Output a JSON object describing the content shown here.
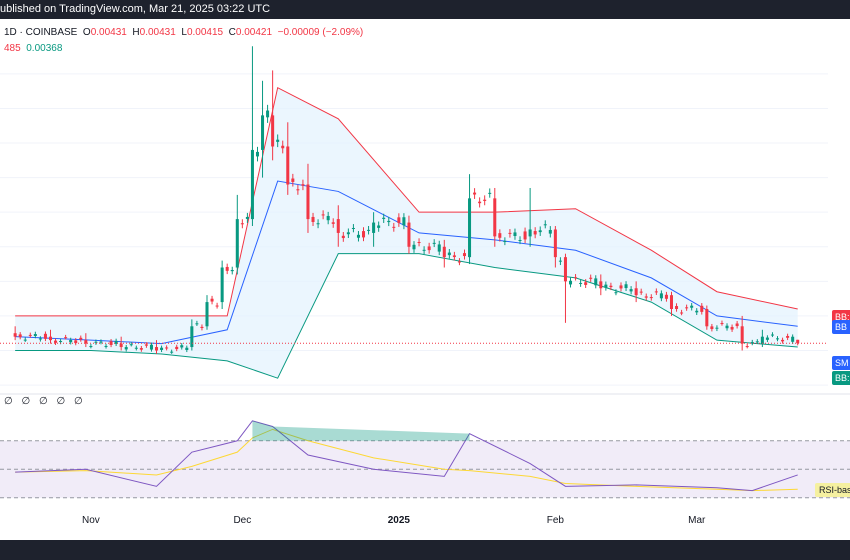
{
  "header": {
    "published": "ublished on TradingView.com, Mar 21, 2025 03:22 UTC"
  },
  "legend": {
    "symbol": "1D · COINBASE",
    "open_label": "O",
    "open": "0.00431",
    "high_label": "H",
    "high": "0.00431",
    "low_label": "L",
    "low": "0.00415",
    "close_label": "C",
    "close": "0.00421",
    "change": "−0.00009 (−2.09%)",
    "bb_values": [
      "485",
      "0.00368"
    ]
  },
  "rsi_legend": "∅ ∅ ∅ ∅ ∅",
  "price_tags": [
    {
      "text": "BB:",
      "color": "#f23645"
    },
    {
      "text": "BB",
      "color": "#2962ff"
    },
    {
      "text": "SM",
      "color": "#2962ff"
    },
    {
      "text": "BB:",
      "color": "#089981"
    }
  ],
  "rsi_tag": "RSI-base",
  "colors": {
    "up": "#089981",
    "down": "#f23645",
    "bb_upper": "#f23645",
    "bb_basis": "#2962ff",
    "bb_lower": "#089981",
    "bb_fill": "#e3f2fd",
    "rsi": "#7e57c2",
    "rsi_ma": "#fdd835",
    "rsi_band": "#ede7f6"
  },
  "chart_data": [
    {
      "type": "candlestick",
      "series_name": "Price (1D)",
      "x_labels": [
        "Nov",
        "Dec",
        "2025",
        "Feb",
        "Mar"
      ],
      "ylim": [
        0.0028,
        0.0135
      ],
      "last_close": 0.00421,
      "candles_sampled": [
        {
          "date": "Oct 17",
          "o": 0.0045,
          "h": 0.0047,
          "l": 0.0043,
          "c": 0.0044
        },
        {
          "date": "Oct 24",
          "o": 0.0044,
          "h": 0.0046,
          "l": 0.0042,
          "c": 0.0043
        },
        {
          "date": "Oct 31",
          "o": 0.0043,
          "h": 0.0045,
          "l": 0.0041,
          "c": 0.0042
        },
        {
          "date": "Nov 07",
          "o": 0.0042,
          "h": 0.0044,
          "l": 0.004,
          "c": 0.0041
        },
        {
          "date": "Nov 14",
          "o": 0.0041,
          "h": 0.0043,
          "l": 0.0039,
          "c": 0.004
        },
        {
          "date": "Nov 21",
          "o": 0.0041,
          "h": 0.0049,
          "l": 0.004,
          "c": 0.0047
        },
        {
          "date": "Nov 24",
          "o": 0.0047,
          "h": 0.0056,
          "l": 0.0046,
          "c": 0.0054
        },
        {
          "date": "Nov 27",
          "o": 0.0054,
          "h": 0.0066,
          "l": 0.0052,
          "c": 0.0064
        },
        {
          "date": "Nov 30",
          "o": 0.0064,
          "h": 0.0085,
          "l": 0.0062,
          "c": 0.0078
        },
        {
          "date": "Dec 03",
          "o": 0.0078,
          "h": 0.0128,
          "l": 0.0076,
          "c": 0.0098
        },
        {
          "date": "Dec 05",
          "o": 0.0098,
          "h": 0.0118,
          "l": 0.009,
          "c": 0.0108
        },
        {
          "date": "Dec 07",
          "o": 0.0108,
          "h": 0.0121,
          "l": 0.0095,
          "c": 0.0099
        },
        {
          "date": "Dec 10",
          "o": 0.0099,
          "h": 0.0106,
          "l": 0.0085,
          "c": 0.0088
        },
        {
          "date": "Dec 14",
          "o": 0.0088,
          "h": 0.0094,
          "l": 0.0074,
          "c": 0.0078
        },
        {
          "date": "Dec 20",
          "o": 0.0078,
          "h": 0.0082,
          "l": 0.007,
          "c": 0.0074
        },
        {
          "date": "Dec 27",
          "o": 0.0074,
          "h": 0.008,
          "l": 0.007,
          "c": 0.0077
        },
        {
          "date": "Jan 03",
          "o": 0.0077,
          "h": 0.0079,
          "l": 0.0068,
          "c": 0.007
        },
        {
          "date": "Jan 10",
          "o": 0.007,
          "h": 0.0072,
          "l": 0.0064,
          "c": 0.0067
        },
        {
          "date": "Jan 15",
          "o": 0.0067,
          "h": 0.0091,
          "l": 0.0065,
          "c": 0.0084
        },
        {
          "date": "Jan 20",
          "o": 0.0084,
          "h": 0.0087,
          "l": 0.007,
          "c": 0.0073
        },
        {
          "date": "Jan 27",
          "o": 0.0073,
          "h": 0.0087,
          "l": 0.007,
          "c": 0.0075
        },
        {
          "date": "Feb 01",
          "o": 0.0075,
          "h": 0.0076,
          "l": 0.0064,
          "c": 0.0067
        },
        {
          "date": "Feb 03",
          "o": 0.0067,
          "h": 0.0068,
          "l": 0.0048,
          "c": 0.006
        },
        {
          "date": "Feb 10",
          "o": 0.006,
          "h": 0.0062,
          "l": 0.0056,
          "c": 0.0058
        },
        {
          "date": "Feb 17",
          "o": 0.0058,
          "h": 0.006,
          "l": 0.0054,
          "c": 0.0056
        },
        {
          "date": "Feb 24",
          "o": 0.0056,
          "h": 0.0057,
          "l": 0.005,
          "c": 0.0052
        },
        {
          "date": "Mar 03",
          "o": 0.0052,
          "h": 0.0053,
          "l": 0.0046,
          "c": 0.0047
        },
        {
          "date": "Mar 10",
          "o": 0.0047,
          "h": 0.005,
          "l": 0.004,
          "c": 0.0042
        },
        {
          "date": "Mar 14",
          "o": 0.0042,
          "h": 0.0046,
          "l": 0.0041,
          "c": 0.0044
        },
        {
          "date": "Mar 21",
          "o": 0.00431,
          "h": 0.00431,
          "l": 0.00415,
          "c": 0.00421
        }
      ],
      "bollinger": {
        "dates": [
          "Oct 17",
          "Nov 01",
          "Nov 15",
          "Nov 28",
          "Dec 08",
          "Dec 20",
          "Jan 05",
          "Jan 20",
          "Feb 05",
          "Feb 20",
          "Mar 05",
          "Mar 21"
        ],
        "upper": [
          0.005,
          0.005,
          0.005,
          0.005,
          0.0116,
          0.0107,
          0.008,
          0.008,
          0.0081,
          0.0069,
          0.0057,
          0.0052
        ],
        "basis": [
          0.0044,
          0.0043,
          0.0042,
          0.0046,
          0.0089,
          0.0086,
          0.0074,
          0.0072,
          0.0069,
          0.0061,
          0.005,
          0.0047
        ],
        "lower": [
          0.004,
          0.004,
          0.0039,
          0.0037,
          0.0032,
          0.0068,
          0.0068,
          0.0064,
          0.0061,
          0.0054,
          0.0043,
          0.0041
        ]
      }
    },
    {
      "type": "line",
      "series_name": "RSI",
      "ylim": [
        20,
        100
      ],
      "bands": [
        30,
        70
      ],
      "dates": [
        "Oct 17",
        "Oct 31",
        "Nov 14",
        "Nov 21",
        "Nov 30",
        "Dec 03",
        "Dec 07",
        "Dec 14",
        "Dec 27",
        "Jan 10",
        "Jan 15",
        "Jan 27",
        "Feb 03",
        "Feb 17",
        "Mar 05",
        "Mar 12",
        "Mar 21"
      ],
      "rsi": [
        48,
        50,
        38,
        62,
        70,
        84,
        80,
        60,
        50,
        45,
        75,
        54,
        38,
        39,
        37,
        35,
        46
      ],
      "rsi_ma": [
        48,
        49,
        46,
        52,
        62,
        72,
        78,
        70,
        58,
        50,
        49,
        45,
        40,
        38,
        36,
        35,
        36
      ]
    }
  ]
}
